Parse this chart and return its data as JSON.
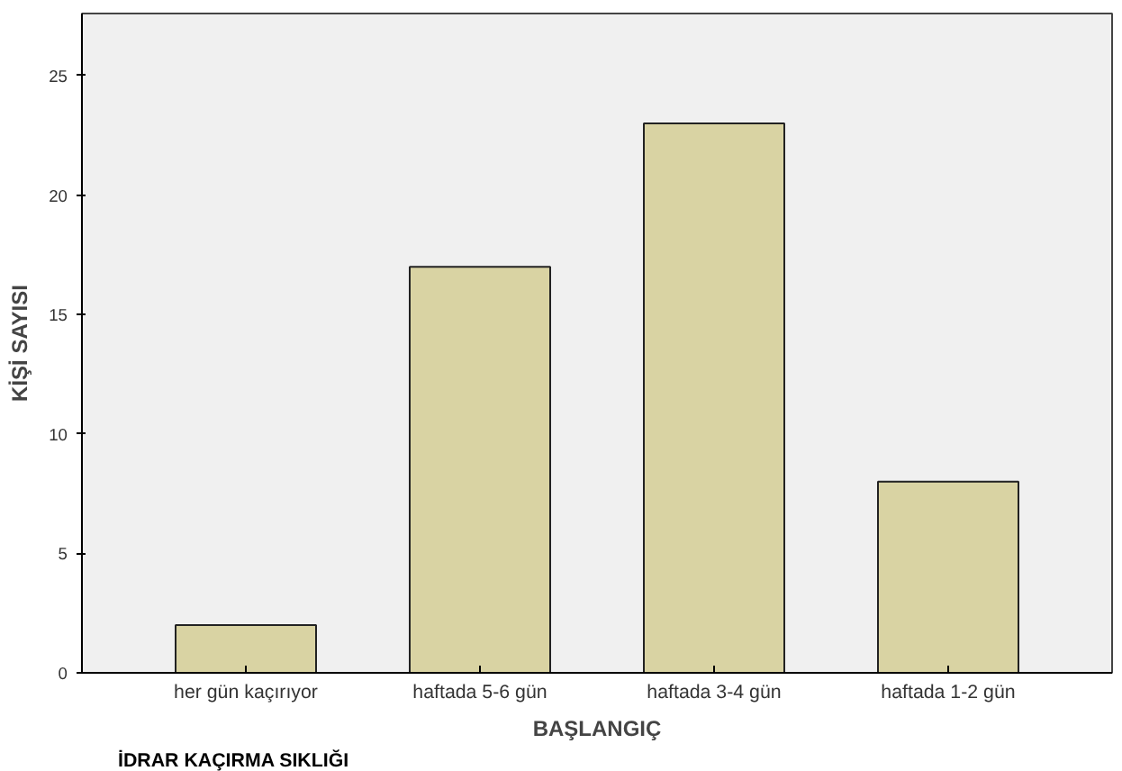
{
  "chart_data": {
    "type": "bar",
    "xlabel": "BAŞLANGIÇ",
    "ylabel": "KİŞİ SAYISI",
    "categories": [
      "her gün kaçırıyor",
      "haftada 5-6 gün",
      "haftada 3-4 gün",
      "haftada 1-2 gün"
    ],
    "values": [
      2,
      17,
      23,
      8
    ],
    "color": "#d9d3a3",
    "ylim": [
      0,
      27.6
    ],
    "yticks": [
      0,
      5,
      10,
      15,
      20,
      25
    ],
    "grid": false,
    "annotations": [
      "İDRAR KAÇIRMA SIKLIĞI"
    ]
  }
}
